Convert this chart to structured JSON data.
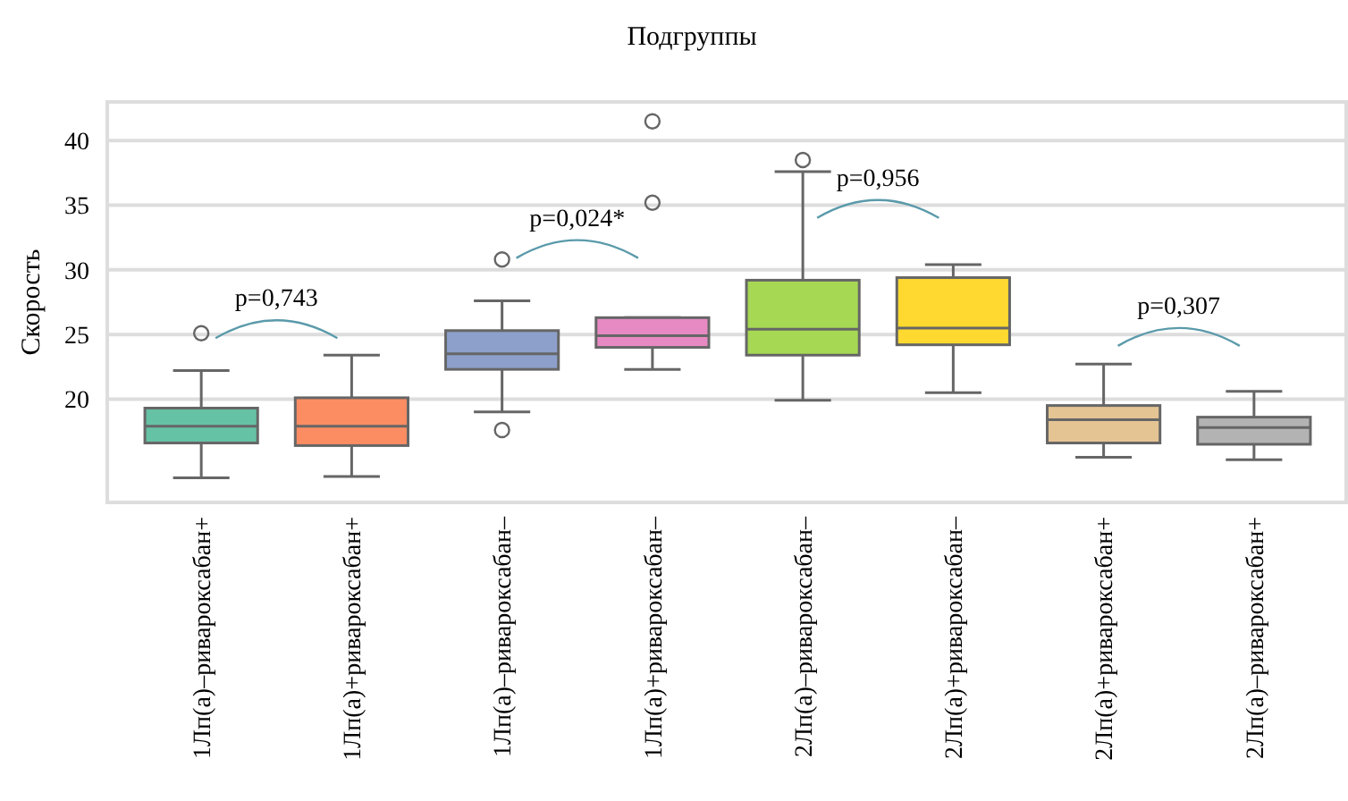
{
  "chart_data": {
    "type": "box",
    "title": "Подгруппы",
    "ylabel": "Скорость",
    "categories": [
      "1Лп(а)–ривароксабан+",
      "1Лп(а)+ривароксабан+",
      "1Лп(а)–ривароксабан–",
      "1Лп(а)+ривароксабан–",
      "2Лп(а)–ривароксабан–",
      "2Лп(а)+ривароксабан–",
      "2Лп(а)+ривароксабан+",
      "2Лп(а)–ривароксабан+"
    ],
    "colors": [
      "#66c2a5",
      "#fc8d62",
      "#8da0cb",
      "#e78ac3",
      "#a6d854",
      "#ffd92f",
      "#e5c494",
      "#b3b3b3"
    ],
    "boxes": [
      {
        "low": 13.9,
        "q1": 16.6,
        "median": 17.9,
        "q3": 19.3,
        "high": 22.2,
        "outliers": [
          25.1
        ]
      },
      {
        "low": 14.0,
        "q1": 16.4,
        "median": 17.9,
        "q3": 20.1,
        "high": 23.4
      },
      {
        "low": 19.0,
        "q1": 22.3,
        "median": 23.5,
        "q3": 25.3,
        "high": 27.6,
        "outliers": [
          30.8,
          17.6
        ]
      },
      {
        "low": 22.3,
        "q1": 24.0,
        "median": 24.9,
        "q3": 26.3,
        "high": 26.3,
        "outliers": [
          41.5,
          35.2
        ]
      },
      {
        "low": 19.9,
        "q1": 23.4,
        "median": 25.4,
        "q3": 29.2,
        "high": 37.6,
        "outliers": [
          38.5
        ]
      },
      {
        "low": 20.5,
        "q1": 24.2,
        "median": 25.5,
        "q3": 29.4,
        "high": 30.4
      },
      {
        "low": 15.5,
        "q1": 16.6,
        "median": 18.4,
        "q3": 19.5,
        "high": 22.7
      },
      {
        "low": 15.3,
        "q1": 16.5,
        "median": 17.8,
        "q3": 18.6,
        "high": 20.6
      }
    ],
    "annotations": [
      "p=0,743",
      "p=0,024*",
      "p=0,956",
      "p=0,307"
    ],
    "ylim": [
      12,
      43
    ],
    "yticks": [
      20,
      25,
      30,
      35,
      40
    ],
    "grid": "y"
  }
}
